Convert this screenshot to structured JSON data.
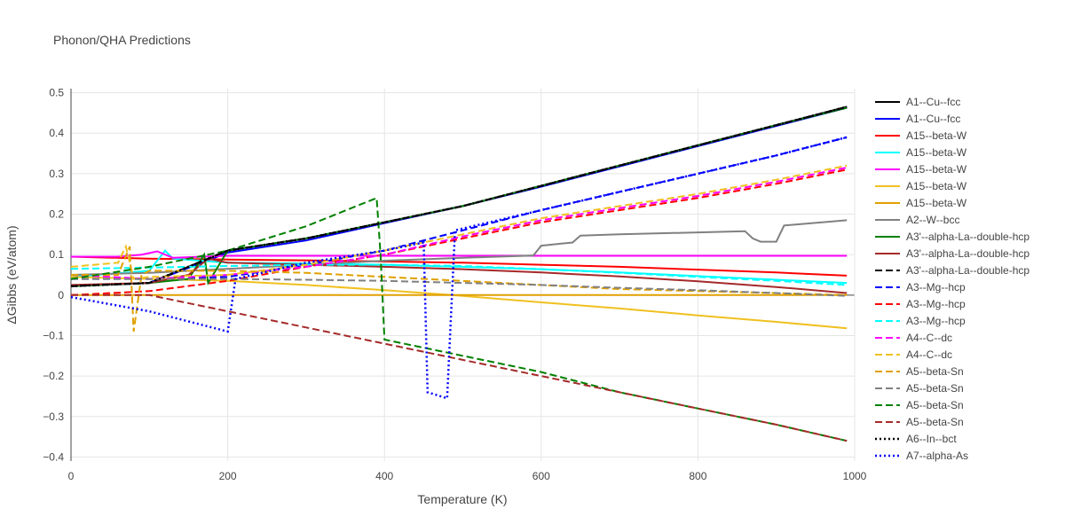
{
  "chart_data": {
    "type": "line",
    "title": "Phonon/QHA Predictions",
    "xlabel": "Temperature (K)",
    "ylabel": "ΔGibbs (eV/atom)",
    "xlim": [
      0,
      1000
    ],
    "ylim": [
      -0.41,
      0.51
    ],
    "xticks": [
      0,
      200,
      400,
      600,
      800,
      1000
    ],
    "yticks": [
      -0.4,
      -0.3,
      -0.2,
      -0.1,
      0,
      0.1,
      0.2,
      0.3,
      0.4,
      0.5
    ],
    "xtick_labels": [
      "0",
      "200",
      "400",
      "600",
      "800",
      "1000"
    ],
    "ytick_labels": [
      "−0.4",
      "−0.3",
      "−0.2",
      "−0.1",
      "0",
      "0.1",
      "0.2",
      "0.3",
      "0.4",
      "0.5"
    ],
    "grid": true,
    "legend_position": "right",
    "series": [
      {
        "name": "A1--Cu--fcc",
        "color": "#000000",
        "dash": "solid",
        "x": [
          0,
          100,
          200,
          300,
          400,
          500,
          600,
          700,
          800,
          900,
          990
        ],
        "y": [
          0.022,
          0.03,
          0.11,
          0.14,
          0.18,
          0.22,
          0.27,
          0.32,
          0.37,
          0.42,
          0.465
        ]
      },
      {
        "name": "A1--Cu--fcc",
        "color": "#0000ff",
        "dash": "solid",
        "x": [
          0,
          100,
          200,
          300,
          400,
          500,
          600,
          700,
          800,
          900,
          990
        ],
        "y": [
          0.022,
          0.03,
          0.105,
          0.135,
          0.178,
          0.22,
          0.268,
          0.318,
          0.368,
          0.418,
          0.463
        ]
      },
      {
        "name": "A15--beta-W",
        "color": "#ff0000",
        "dash": "solid",
        "x": [
          0,
          100,
          200,
          300,
          400,
          500,
          600,
          700,
          800,
          900,
          990
        ],
        "y": [
          0.095,
          0.09,
          0.088,
          0.086,
          0.083,
          0.08,
          0.075,
          0.07,
          0.063,
          0.056,
          0.048
        ]
      },
      {
        "name": "A15--beta-W",
        "color": "#00ffff",
        "dash": "solid",
        "x": [
          0,
          100,
          120,
          130,
          200,
          300,
          400,
          500,
          600,
          700,
          800,
          900,
          990
        ],
        "y": [
          0.045,
          0.06,
          0.11,
          0.09,
          0.08,
          0.078,
          0.075,
          0.07,
          0.064,
          0.056,
          0.047,
          0.038,
          0.03
        ]
      },
      {
        "name": "A15--beta-W",
        "color": "#ff00ff",
        "dash": "solid",
        "x": [
          0,
          60,
          90,
          110,
          130,
          200,
          300,
          400,
          500,
          600,
          700,
          800,
          900,
          990
        ],
        "y": [
          0.095,
          0.095,
          0.1,
          0.108,
          0.092,
          0.097,
          0.097,
          0.097,
          0.097,
          0.097,
          0.097,
          0.097,
          0.097,
          0.097
        ]
      },
      {
        "name": "A15--beta-W",
        "color": "#f0c020",
        "dash": "solid",
        "x": [
          0,
          100,
          200,
          300,
          400,
          500,
          600,
          700,
          800,
          900,
          990
        ],
        "y": [
          0.045,
          0.04,
          0.035,
          0.025,
          0.012,
          -0.002,
          -0.018,
          -0.033,
          -0.05,
          -0.066,
          -0.082
        ]
      },
      {
        "name": "A15--beta-W",
        "color": "#e0a000",
        "dash": "solid",
        "x": [
          0,
          200,
          400,
          600,
          800,
          990
        ],
        "y": [
          0.0,
          0.0,
          0.0,
          0.0,
          0.0,
          0.0
        ]
      },
      {
        "name": "A2--W--bcc",
        "color": "#808080",
        "dash": "solid",
        "x": [
          0,
          100,
          200,
          300,
          400,
          500,
          580,
          590,
          600,
          640,
          650,
          700,
          800,
          860,
          870,
          880,
          900,
          910,
          990
        ],
        "y": [
          0.05,
          0.055,
          0.065,
          0.075,
          0.085,
          0.092,
          0.097,
          0.098,
          0.122,
          0.13,
          0.147,
          0.15,
          0.155,
          0.158,
          0.14,
          0.132,
          0.132,
          0.172,
          0.185
        ]
      },
      {
        "name": "A3'--alpha-La--double-hcp",
        "color": "#008000",
        "dash": "solid",
        "x": [
          0,
          100,
          150,
          170,
          175,
          200,
          300,
          400,
          500,
          600,
          700,
          800,
          900,
          990
        ],
        "y": [
          0.022,
          0.03,
          0.04,
          0.1,
          0.03,
          0.11,
          0.14,
          0.18,
          0.22,
          0.27,
          0.32,
          0.37,
          0.42,
          0.463
        ]
      },
      {
        "name": "A3'--alpha-La--double-hcp",
        "color": "#a52a2a",
        "dash": "solid",
        "x": [
          0,
          100,
          150,
          175,
          200,
          300,
          400,
          500,
          600,
          700,
          800,
          900,
          990
        ],
        "y": [
          0.025,
          0.03,
          0.05,
          0.09,
          0.08,
          0.075,
          0.07,
          0.064,
          0.056,
          0.046,
          0.034,
          0.02,
          0.005
        ]
      },
      {
        "name": "A3'--alpha-La--double-hcp",
        "color": "#000000",
        "dash": "dash",
        "x": [
          0,
          100,
          200,
          300,
          400,
          500,
          600,
          700,
          800,
          900,
          990
        ],
        "y": [
          0.022,
          0.03,
          0.11,
          0.14,
          0.18,
          0.22,
          0.27,
          0.32,
          0.37,
          0.42,
          0.465
        ]
      },
      {
        "name": "A3--Mg--hcp",
        "color": "#0000ff",
        "dash": "dash",
        "x": [
          0,
          100,
          200,
          300,
          400,
          500,
          600,
          700,
          800,
          900,
          990
        ],
        "y": [
          0.04,
          0.04,
          0.045,
          0.075,
          0.11,
          0.16,
          0.21,
          0.255,
          0.3,
          0.345,
          0.39
        ]
      },
      {
        "name": "A3--Mg--hcp",
        "color": "#ff0000",
        "dash": "dash",
        "x": [
          0,
          100,
          200,
          300,
          400,
          500,
          600,
          700,
          800,
          900,
          990
        ],
        "y": [
          0.0,
          0.01,
          0.035,
          0.07,
          0.1,
          0.14,
          0.18,
          0.21,
          0.24,
          0.275,
          0.31
        ]
      },
      {
        "name": "A3--Mg--hcp",
        "color": "#00ffff",
        "dash": "dash",
        "x": [
          0,
          100,
          200,
          300,
          400,
          500,
          600,
          700,
          800,
          900,
          990
        ],
        "y": [
          0.065,
          0.068,
          0.072,
          0.075,
          0.075,
          0.072,
          0.064,
          0.055,
          0.045,
          0.035,
          0.025
        ]
      },
      {
        "name": "A4--C--dc",
        "color": "#ff00ff",
        "dash": "dash",
        "x": [
          0,
          100,
          200,
          300,
          400,
          500,
          600,
          700,
          800,
          900,
          990
        ],
        "y": [
          0.05,
          0.04,
          0.05,
          0.07,
          0.1,
          0.145,
          0.185,
          0.215,
          0.245,
          0.28,
          0.315
        ]
      },
      {
        "name": "A4--C--dc",
        "color": "#f0c020",
        "dash": "dash",
        "x": [
          0,
          60,
          70,
          80,
          100,
          200,
          300,
          400,
          500,
          600,
          700,
          800,
          900,
          990
        ],
        "y": [
          0.07,
          0.08,
          0.12,
          0.04,
          0.045,
          0.05,
          0.075,
          0.11,
          0.15,
          0.19,
          0.22,
          0.25,
          0.285,
          0.32
        ]
      },
      {
        "name": "A5--beta-Sn",
        "color": "#e0a000",
        "dash": "dash",
        "x": [
          0,
          60,
          75,
          80,
          90,
          100,
          200,
          300,
          400,
          500,
          600,
          700,
          800,
          900,
          990
        ],
        "y": [
          0.05,
          0.05,
          0.12,
          -0.09,
          0.05,
          0.06,
          0.06,
          0.055,
          0.045,
          0.035,
          0.025,
          0.015,
          0.01,
          0.005,
          0.0
        ]
      },
      {
        "name": "A5--beta-Sn",
        "color": "#808080",
        "dash": "dash",
        "x": [
          0,
          100,
          200,
          300,
          400,
          500,
          600,
          700,
          800,
          900,
          990
        ],
        "y": [
          0.04,
          0.04,
          0.04,
          0.038,
          0.035,
          0.03,
          0.025,
          0.018,
          0.012,
          0.005,
          -0.002
        ]
      },
      {
        "name": "A5--beta-Sn",
        "color": "#008000",
        "dash": "dash",
        "x": [
          0,
          100,
          200,
          300,
          390,
          395,
          400,
          500,
          600,
          700,
          800,
          900,
          990
        ],
        "y": [
          0.04,
          0.07,
          0.11,
          0.17,
          0.24,
          0.1,
          -0.11,
          -0.15,
          -0.19,
          -0.24,
          -0.28,
          -0.32,
          -0.36
        ]
      },
      {
        "name": "A5--beta-Sn",
        "color": "#a52a2a",
        "dash": "dash",
        "x": [
          0,
          100,
          200,
          300,
          400,
          500,
          600,
          700,
          800,
          900,
          990
        ],
        "y": [
          0.0,
          0.0,
          -0.04,
          -0.08,
          -0.12,
          -0.16,
          -0.2,
          -0.24,
          -0.28,
          -0.32,
          -0.36
        ]
      },
      {
        "name": "A6--In--bct",
        "color": "#000000",
        "dash": "dot",
        "x": [
          0,
          100,
          200,
          300,
          400,
          500,
          600,
          700,
          800,
          900,
          990
        ],
        "y": [
          0.022,
          0.03,
          0.11,
          0.14,
          0.18,
          0.22,
          0.27,
          0.32,
          0.37,
          0.42,
          0.465
        ]
      },
      {
        "name": "A7--alpha-As",
        "color": "#0000ff",
        "dash": "dot",
        "x": [
          0,
          100,
          200,
          210,
          300,
          400,
          450,
          455,
          480,
          490,
          600,
          700,
          800,
          900,
          990
        ],
        "y": [
          -0.005,
          -0.04,
          -0.09,
          0.04,
          0.08,
          0.11,
          0.13,
          -0.24,
          -0.255,
          0.16,
          0.21,
          0.255,
          0.3,
          0.345,
          0.39
        ]
      }
    ]
  }
}
